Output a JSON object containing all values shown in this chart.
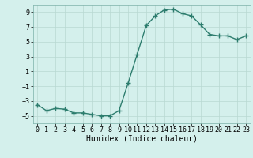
{
  "xlabel": "Humidex (Indice chaleur)",
  "x": [
    0,
    1,
    2,
    3,
    4,
    5,
    6,
    7,
    8,
    9,
    10,
    11,
    12,
    13,
    14,
    15,
    16,
    17,
    18,
    19,
    20,
    21,
    22,
    23
  ],
  "y": [
    -3.5,
    -4.3,
    -4.0,
    -4.1,
    -4.6,
    -4.6,
    -4.8,
    -5.0,
    -5.0,
    -4.3,
    -0.6,
    3.3,
    7.2,
    8.5,
    9.3,
    9.4,
    8.8,
    8.5,
    7.3,
    6.0,
    5.8,
    5.8,
    5.3,
    5.8
  ],
  "line_color": "#2d7d6e",
  "marker": "+",
  "marker_size": 4,
  "line_width": 1.0,
  "background_color": "#d4f0ec",
  "grid_color": "#b8d8d2",
  "ylim": [
    -6,
    10
  ],
  "yticks": [
    -5,
    -3,
    -1,
    1,
    3,
    5,
    7,
    9
  ],
  "xlim": [
    -0.5,
    23.5
  ],
  "xtick_labels": [
    "0",
    "1",
    "2",
    "3",
    "4",
    "5",
    "6",
    "7",
    "8",
    "9",
    "10",
    "11",
    "12",
    "13",
    "14",
    "15",
    "16",
    "17",
    "18",
    "19",
    "20",
    "21",
    "22",
    "23"
  ],
  "tick_fontsize": 6,
  "xlabel_fontsize": 7
}
